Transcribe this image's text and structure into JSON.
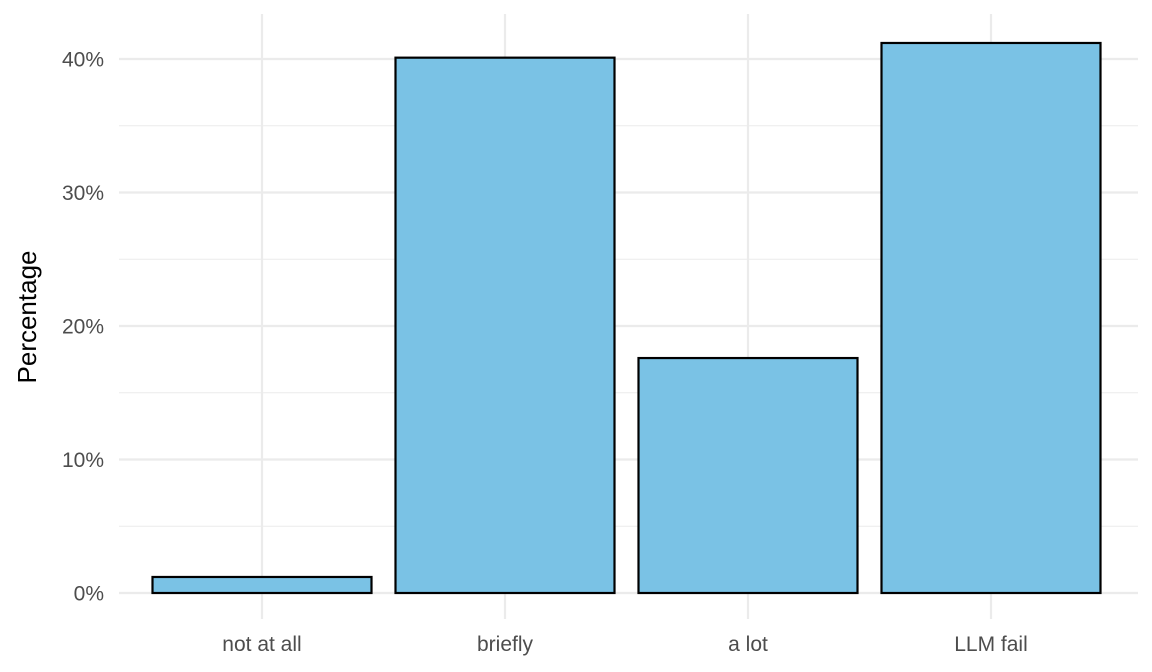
{
  "chart_data": {
    "type": "bar",
    "title": "",
    "xlabel": "",
    "ylabel": "Percentage",
    "categories": [
      "not at all",
      "briefly",
      "a lot",
      "LLM fail"
    ],
    "values": [
      1.2,
      40.1,
      17.6,
      41.2
    ],
    "ylim": [
      0,
      41.5
    ],
    "y_ticks": [
      0,
      10,
      20,
      30,
      40
    ],
    "y_tick_labels": [
      "0%",
      "10%",
      "20%",
      "30%",
      "40%"
    ],
    "grid": true,
    "legend": "none",
    "bar_color": "#7AC2E5",
    "bar_outline_color": "#000000",
    "gridline_color": "#EBEBEB"
  }
}
